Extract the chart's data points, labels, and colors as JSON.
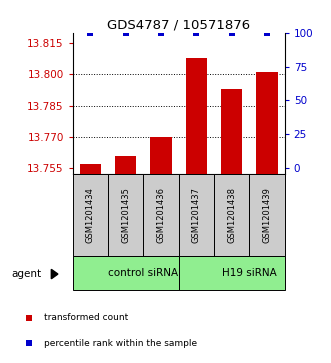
{
  "title": "GDS4787 / 10571876",
  "samples": [
    "GSM1201434",
    "GSM1201435",
    "GSM1201436",
    "GSM1201437",
    "GSM1201438",
    "GSM1201439"
  ],
  "red_values": [
    13.757,
    13.761,
    13.77,
    13.808,
    13.793,
    13.801
  ],
  "blue_values": [
    100,
    100,
    100,
    100,
    100,
    100
  ],
  "ylim_left": [
    13.752,
    13.82
  ],
  "ylim_right": [
    -4.41,
    100
  ],
  "yticks_left": [
    13.755,
    13.77,
    13.785,
    13.8,
    13.815
  ],
  "yticks_right": [
    0,
    25,
    50,
    75,
    100
  ],
  "bar_color_red": "#CC0000",
  "bar_color_blue": "#0000CC",
  "bar_width": 0.6,
  "legend_red": "transformed count",
  "legend_blue": "percentile rank within the sample",
  "background_color": "#ffffff",
  "tick_label_color_left": "#CC0000",
  "tick_label_color_right": "#0000CC",
  "sample_box_color": "#CCCCCC",
  "group_color": "#90EE90",
  "base_value": 13.752,
  "group_boxes": [
    [
      0,
      3,
      "control siRNA"
    ],
    [
      3,
      6,
      "H19 siRNA"
    ]
  ]
}
